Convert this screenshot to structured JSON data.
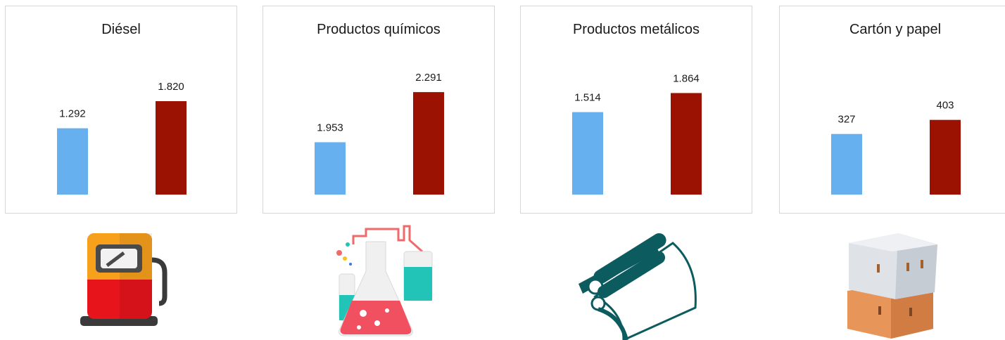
{
  "colors": {
    "series_a": "#66b0f0",
    "series_b": "#9b1202"
  },
  "chart_data": [
    {
      "type": "bar",
      "title": "Diésel",
      "categories": [
        "",
        ""
      ],
      "values": [
        1292,
        1820
      ],
      "labels": [
        "1.292",
        "1.820"
      ],
      "ylim": [
        0,
        2600
      ],
      "icon": "fuel-pump-icon"
    },
    {
      "type": "bar",
      "title": "Productos químicos",
      "categories": [
        "",
        ""
      ],
      "values": [
        1953,
        2291
      ],
      "labels": [
        "1.953",
        "2.291"
      ],
      "ylim": [
        1600,
        2500
      ],
      "icon": "chemistry-flasks-icon"
    },
    {
      "type": "bar",
      "title": "Productos metálicos",
      "categories": [
        "",
        ""
      ],
      "values": [
        1514,
        1864
      ],
      "labels": [
        "1.514",
        "1.864"
      ],
      "ylim": [
        0,
        2450
      ],
      "icon": "metal-rolls-icon"
    },
    {
      "type": "bar",
      "title": "Cartón y papel",
      "categories": [
        "",
        ""
      ],
      "values": [
        327,
        403
      ],
      "labels": [
        "327",
        "403"
      ],
      "ylim": [
        0,
        720
      ],
      "icon": "cardboard-boxes-icon"
    }
  ]
}
